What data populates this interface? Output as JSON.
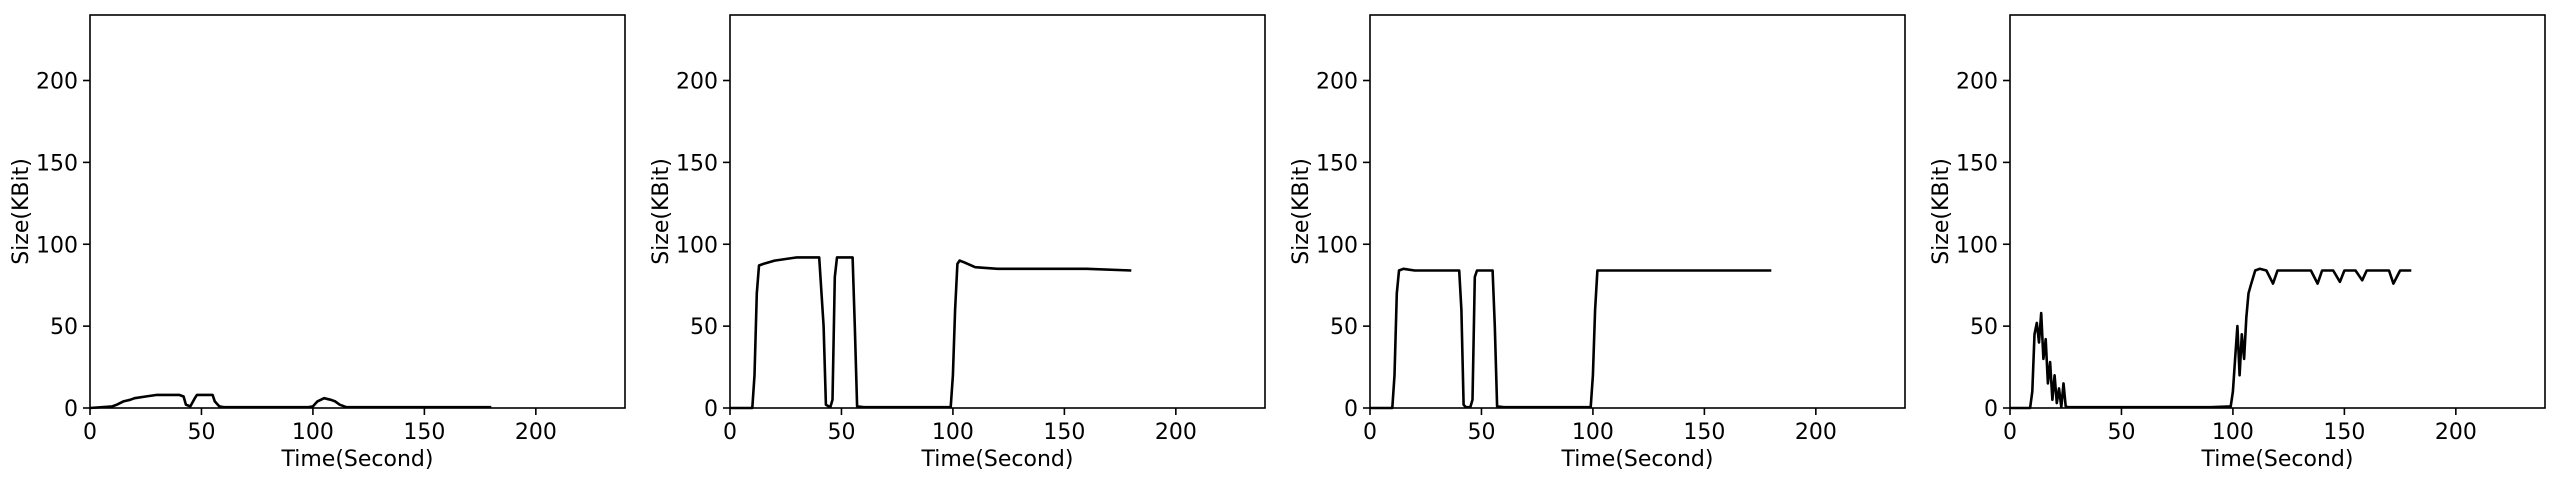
{
  "chart_data": [
    {
      "type": "line",
      "xlabel": "Time(Second)",
      "ylabel": "Size(KBit)",
      "xlim": [
        0,
        240
      ],
      "ylim": [
        0,
        240
      ],
      "xticks": [
        0,
        50,
        100,
        150,
        200
      ],
      "yticks": [
        0,
        50,
        100,
        150,
        200
      ],
      "grid": false,
      "series": [
        {
          "color": "#000000",
          "x": [
            0,
            10,
            12,
            15,
            18,
            20,
            25,
            30,
            35,
            40,
            42,
            43,
            45,
            47,
            48,
            50,
            55,
            56,
            58,
            60,
            70,
            80,
            90,
            98,
            100,
            102,
            105,
            108,
            110,
            112,
            115,
            120,
            140,
            160,
            180
          ],
          "y": [
            0,
            1,
            2,
            4,
            5,
            6,
            7,
            8,
            8,
            8,
            7,
            2,
            1,
            6,
            8,
            8,
            8,
            4,
            1,
            0.5,
            0.5,
            0.5,
            0.5,
            0.5,
            1,
            4,
            6,
            5,
            4,
            2,
            0.5,
            0.5,
            0.5,
            0.5,
            0.5
          ]
        }
      ]
    },
    {
      "type": "line",
      "xlabel": "Time(Second)",
      "ylabel": "Size(KBit)",
      "xlim": [
        0,
        240
      ],
      "ylim": [
        0,
        240
      ],
      "xticks": [
        0,
        50,
        100,
        150,
        200
      ],
      "yticks": [
        0,
        50,
        100,
        150,
        200
      ],
      "grid": false,
      "series": [
        {
          "color": "#000000",
          "x": [
            0,
            10,
            11,
            12,
            13,
            15,
            20,
            25,
            30,
            35,
            40,
            42,
            43,
            45,
            46,
            47,
            48,
            50,
            55,
            56,
            57,
            60,
            70,
            80,
            90,
            99,
            100,
            101,
            102,
            103,
            105,
            110,
            120,
            140,
            160,
            180
          ],
          "y": [
            0,
            0,
            20,
            70,
            87,
            88,
            90,
            91,
            92,
            92,
            92,
            50,
            2,
            0.5,
            5,
            80,
            92,
            92,
            92,
            50,
            1,
            0.5,
            0.5,
            0.5,
            0.5,
            0.5,
            20,
            60,
            88,
            90,
            89,
            86,
            85,
            85,
            85,
            84
          ]
        }
      ]
    },
    {
      "type": "line",
      "xlabel": "Time(Second)",
      "ylabel": "Size(KBit)",
      "xlim": [
        0,
        240
      ],
      "ylim": [
        0,
        240
      ],
      "xticks": [
        0,
        50,
        100,
        150,
        200
      ],
      "yticks": [
        0,
        50,
        100,
        150,
        200
      ],
      "grid": false,
      "series": [
        {
          "color": "#000000",
          "x": [
            0,
            10,
            11,
            12,
            13,
            15,
            20,
            30,
            40,
            41,
            42,
            43,
            45,
            46,
            47,
            48,
            50,
            55,
            56,
            57,
            60,
            70,
            80,
            90,
            99,
            100,
            101,
            102,
            105,
            120,
            140,
            160,
            180
          ],
          "y": [
            0,
            0,
            20,
            70,
            84,
            85,
            84,
            84,
            84,
            60,
            2,
            0.5,
            0.5,
            5,
            80,
            84,
            84,
            84,
            50,
            1,
            0.5,
            0.5,
            0.5,
            0.5,
            0.5,
            20,
            60,
            84,
            84,
            84,
            84,
            84,
            84
          ]
        }
      ]
    },
    {
      "type": "line",
      "xlabel": "Time(Second)",
      "ylabel": "Size(KBit)",
      "xlim": [
        0,
        240
      ],
      "ylim": [
        0,
        240
      ],
      "xticks": [
        0,
        50,
        100,
        150,
        200
      ],
      "yticks": [
        0,
        50,
        100,
        150,
        200
      ],
      "grid": false,
      "series": [
        {
          "color": "#000000",
          "x": [
            0,
            9,
            10,
            11,
            12,
            13,
            14,
            15,
            16,
            17,
            18,
            19,
            20,
            21,
            22,
            23,
            24,
            25,
            26,
            30,
            50,
            70,
            90,
            99,
            100,
            101,
            102,
            103,
            104,
            105,
            106,
            107,
            108,
            110,
            112,
            115,
            118,
            120,
            125,
            130,
            135,
            138,
            140,
            145,
            148,
            150,
            155,
            158,
            160,
            165,
            170,
            172,
            175,
            180
          ],
          "y": [
            0,
            0,
            10,
            45,
            52,
            40,
            58,
            30,
            42,
            15,
            28,
            5,
            20,
            3,
            12,
            0.5,
            15,
            1,
            0.5,
            0.5,
            0.5,
            0.5,
            0.5,
            1,
            10,
            30,
            50,
            20,
            45,
            30,
            55,
            70,
            75,
            84,
            85,
            84,
            76,
            84,
            84,
            84,
            84,
            76,
            84,
            84,
            77,
            84,
            84,
            78,
            84,
            84,
            84,
            76,
            84,
            84
          ]
        }
      ]
    }
  ]
}
